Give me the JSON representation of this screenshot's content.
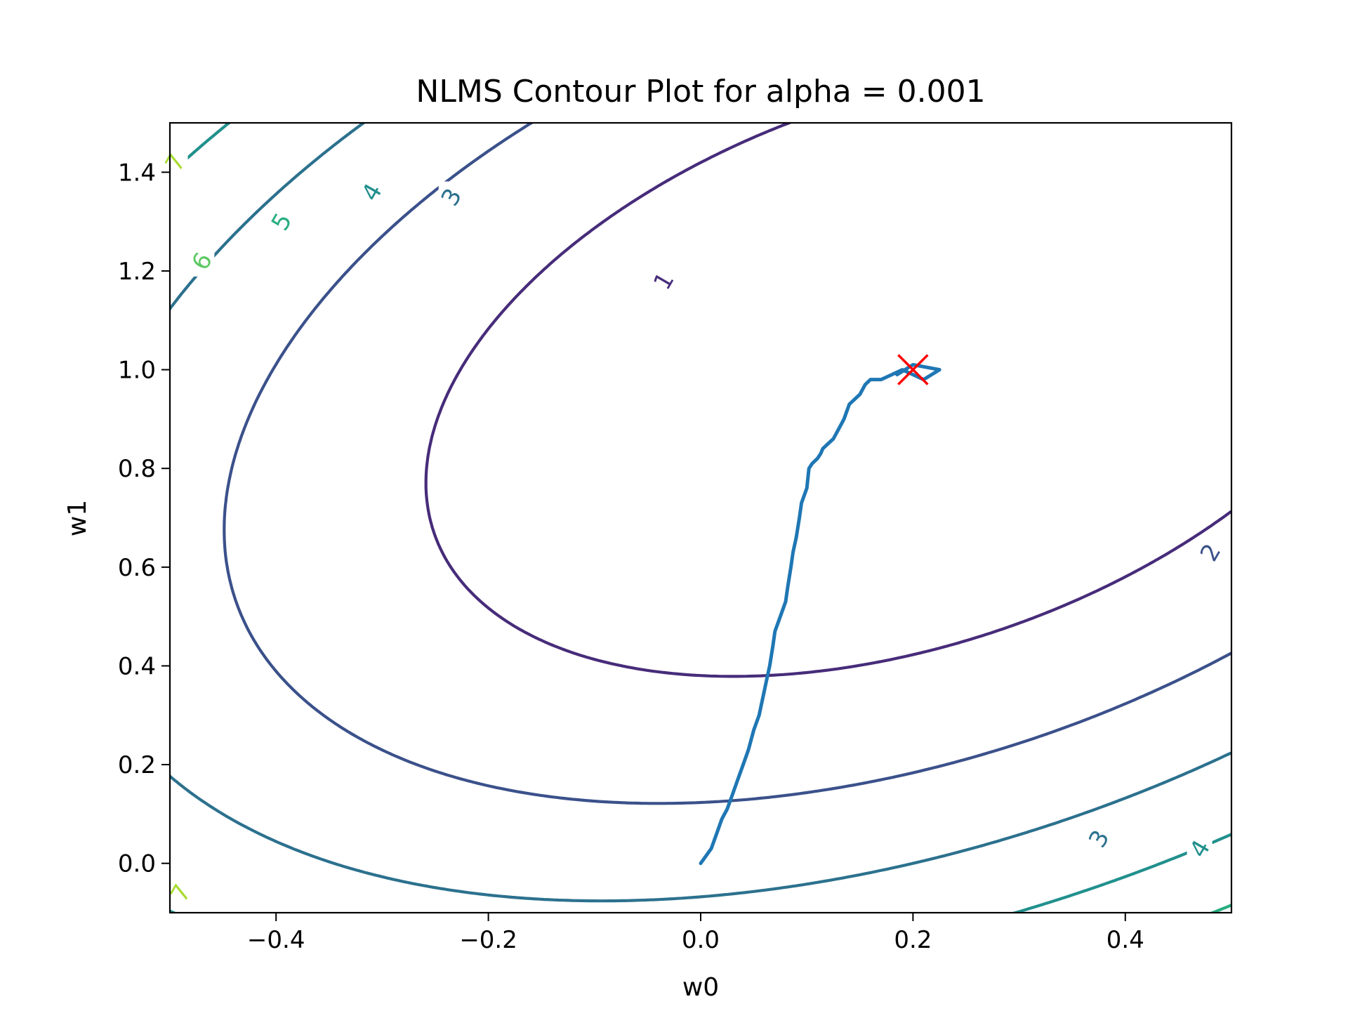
{
  "chart_data": {
    "type": "contour",
    "title": "NLMS Contour Plot for alpha = 0.001",
    "xlabel": "w0",
    "ylabel": "w1",
    "xlim": [
      -0.5,
      0.5
    ],
    "ylim": [
      -0.1,
      1.5
    ],
    "xticks": [
      -0.4,
      -0.2,
      0.0,
      0.2,
      0.4
    ],
    "xtick_labels": [
      "−0.4",
      "−0.2",
      "0.0",
      "0.2",
      "0.4"
    ],
    "yticks": [
      0.0,
      0.2,
      0.4,
      0.6,
      0.8,
      1.0,
      1.2,
      1.4
    ],
    "ytick_labels": [
      "0.0",
      "0.2",
      "0.4",
      "0.6",
      "0.8",
      "1.0",
      "1.2",
      "1.4"
    ],
    "grid": false,
    "contour_levels": [
      1,
      2,
      3,
      4,
      5,
      6,
      7
    ],
    "contour_colors": [
      "#472c7a",
      "#3b518b",
      "#2c718e",
      "#21908d",
      "#27ad81",
      "#5cc863",
      "#aadc32"
    ],
    "contour_labels": [
      {
        "text": "1",
        "level": 1,
        "x": -0.035,
        "y": 1.18
      },
      {
        "text": "2",
        "level": 2,
        "x": 0.48,
        "y": 0.63
      },
      {
        "text": "3",
        "level": 3,
        "x": -0.235,
        "y": 1.35
      },
      {
        "text": "3",
        "level": 3,
        "x": 0.375,
        "y": 0.05
      },
      {
        "text": "4",
        "level": 4,
        "x": -0.31,
        "y": 1.36
      },
      {
        "text": "4",
        "level": 4,
        "x": 0.47,
        "y": 0.03
      },
      {
        "text": "5",
        "level": 5,
        "x": -0.395,
        "y": 1.3
      },
      {
        "text": "6",
        "level": 6,
        "x": -0.47,
        "y": 1.22
      },
      {
        "text": "7",
        "level": 7,
        "x": -0.495,
        "y": 1.42
      },
      {
        "text": "7",
        "level": 7,
        "x": -0.49,
        "y": -0.06
      }
    ],
    "series": [
      {
        "type": "line",
        "color": "#1f77b4",
        "x": [
          0.0,
          0.01,
          0.015,
          0.02,
          0.025,
          0.03,
          0.035,
          0.04,
          0.045,
          0.05,
          0.055,
          0.058,
          0.062,
          0.065,
          0.068,
          0.07,
          0.075,
          0.08,
          0.082,
          0.085,
          0.087,
          0.09,
          0.093,
          0.095,
          0.1,
          0.102,
          0.105,
          0.11,
          0.113,
          0.115,
          0.12,
          0.125,
          0.13,
          0.135,
          0.14,
          0.15,
          0.155,
          0.16,
          0.17,
          0.18,
          0.19,
          0.2,
          0.21,
          0.225,
          0.2,
          0.185
        ],
        "y": [
          0.0,
          0.03,
          0.06,
          0.09,
          0.11,
          0.14,
          0.17,
          0.2,
          0.23,
          0.27,
          0.3,
          0.33,
          0.37,
          0.4,
          0.44,
          0.47,
          0.5,
          0.53,
          0.56,
          0.6,
          0.63,
          0.66,
          0.7,
          0.73,
          0.76,
          0.8,
          0.81,
          0.82,
          0.83,
          0.84,
          0.85,
          0.86,
          0.88,
          0.9,
          0.93,
          0.95,
          0.97,
          0.98,
          0.98,
          0.99,
          1.0,
          0.99,
          0.98,
          1.0,
          1.01,
          0.99
        ]
      }
    ],
    "marker": {
      "symbol": "x",
      "color": "#ff0000",
      "x": 0.2,
      "y": 1.0
    }
  }
}
